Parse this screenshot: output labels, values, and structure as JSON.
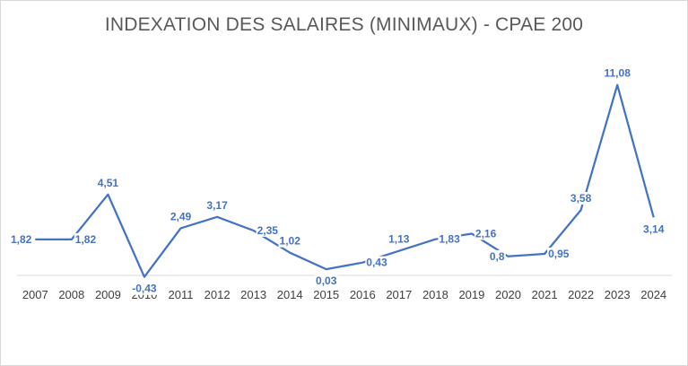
{
  "chart_data": {
    "type": "line",
    "title": "INDEXATION DES SALAIRES (MINIMAUX) - CPAE 200",
    "xlabel": "",
    "ylabel": "",
    "categories": [
      "2007",
      "2008",
      "2009",
      "2010",
      "2011",
      "2012",
      "2013",
      "2014",
      "2015",
      "2016",
      "2017",
      "2018",
      "2019",
      "2020",
      "2021",
      "2022",
      "2023",
      "2024"
    ],
    "series": [
      {
        "values": [
          1.82,
          1.82,
          4.51,
          -0.43,
          2.49,
          3.17,
          2.35,
          1.02,
          0.03,
          0.43,
          1.13,
          1.83,
          2.16,
          0.8,
          0.95,
          3.58,
          11.08,
          3.14
        ],
        "data_labels": [
          "1,82",
          "1,82",
          "4,51",
          "-0,43",
          "2,49",
          "3,17",
          "2,35",
          "1,02",
          "0,03",
          "0,43",
          "1,13",
          "1,83",
          "2,16",
          "0,8",
          "0,95",
          "3,58",
          "11,08",
          "3,14"
        ],
        "color": "#4472c4"
      }
    ],
    "ylim": [
      -0.5,
      11.6
    ],
    "grid": false,
    "legend": "none",
    "y_axis_visible": false,
    "axis_color": "#d9d9d9",
    "tick_color": "#404040",
    "title_color": "#595959"
  }
}
